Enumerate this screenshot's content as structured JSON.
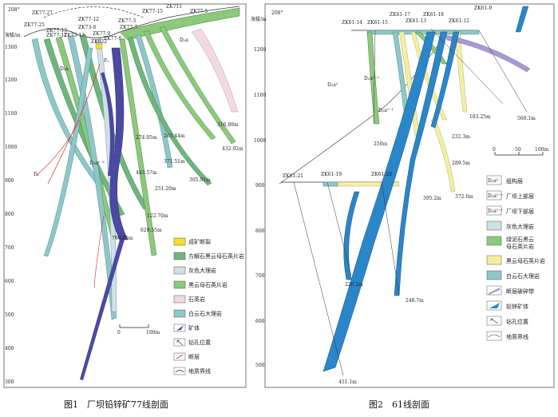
{
  "colors": {
    "ore": "#4a4aa0",
    "ore_blue": "#2a86c9",
    "green_schist": "#8cc97a",
    "quartz_schist_green": "#6fb67d",
    "grey_marble": "#cfe0e6",
    "biotite_schist_yellow": "#f4f09a",
    "dolomite_teal": "#8fc7c7",
    "quartzite_pink": "#f2d9e4",
    "fault_red": "#d0332c",
    "breccia_purple": "#a79ad0",
    "mineralized_yellow": "#f3e12c"
  },
  "fig1": {
    "caption": "图1　厂坝铅锌矿77线剖面",
    "azimuth": "208°",
    "elev_label": "海拔/m",
    "y_ticks": [
      "1300",
      "1200",
      "1100",
      "1000",
      "900",
      "800",
      "700",
      "600",
      "500",
      "400",
      "300"
    ],
    "holes": [
      "ZK77-27",
      "ZK77-25",
      "ZK77-11",
      "ZK77-13",
      "ZK73-13",
      "ZK77-12",
      "ZK73-8",
      "ZK77-9",
      "ZK77-8",
      "ZK622",
      "ZK77-3",
      "ZK77-7",
      "ZK77-15",
      "ZK711",
      "ZK77-5"
    ],
    "depths": [
      "316.89m",
      "432.92m",
      "265.44m",
      "274.05m",
      "371.51m",
      "305.91m",
      "443.57m",
      "251.20m",
      "122.70m",
      "629.55m",
      "706.85m"
    ],
    "formations": [
      "D₂a",
      "D₂a",
      "D₂a¹⁻²",
      "F₁",
      "F₂"
    ],
    "scale": [
      "0",
      "100m"
    ],
    "legend": [
      {
        "label": "成矿断裂",
        "swatch": "mineralized_yellow"
      },
      {
        "label": "方解石黑云母石英片岩",
        "swatch": "quartz_schist_green"
      },
      {
        "label": "灰色大理岩",
        "swatch": "grey_marble"
      },
      {
        "label": "黑云母石英片岩",
        "swatch": "green_schist"
      },
      {
        "label": "石英岩",
        "swatch": "quartzite_pink"
      },
      {
        "label": "白云石大理岩",
        "swatch": "dolomite_teal"
      },
      {
        "label": "矿体",
        "swatch": "ore"
      },
      {
        "label": "钻孔位置",
        "swatch": "none"
      },
      {
        "label": "断层",
        "swatch": "fault_red"
      },
      {
        "label": "地质界线",
        "swatch": "none"
      }
    ]
  },
  "fig2": {
    "caption": "图2　61线剖面",
    "azimuth": "208°",
    "elev_label": "海拔/m",
    "y_ticks": [
      "1200",
      "1100",
      "1000",
      "900",
      "800",
      "700",
      "600",
      "500"
    ],
    "holes": [
      "ZK61-14",
      "ZK61-15",
      "ZK61-17",
      "ZK61-13",
      "ZK61-18",
      "ZK61-12",
      "ZK61-9",
      "ZK61-21",
      "ZK61-19",
      "ZK61-20"
    ],
    "depths": [
      "183.25m",
      "560.1m",
      "250m",
      "232.3m",
      "289.5m",
      "395.2m",
      "372.6m",
      "220.2m",
      "248.7m",
      "451.1m"
    ],
    "formations": [
      "D₂a²",
      "D₂a¹⁻²",
      "D₂a¹⁻¹"
    ],
    "scale": [
      "0",
      "50",
      "100m"
    ],
    "legend": [
      {
        "label": "组构层",
        "sym": "D₂a²",
        "swatch": "none"
      },
      {
        "label": "厂坝上部层",
        "sym": "D₂a¹⁻²",
        "swatch": "none"
      },
      {
        "label": "厂坝下部层",
        "sym": "D₂a¹⁻¹",
        "swatch": "none"
      },
      {
        "label": "灰色大理岩",
        "swatch": "grey_marble"
      },
      {
        "label": "绿泥石黑云母石英片岩",
        "swatch": "green_schist"
      },
      {
        "label": "黑云母石英片岩",
        "swatch": "biotite_schist_yellow"
      },
      {
        "label": "白云石大理岩",
        "swatch": "dolomite_teal"
      },
      {
        "label": "断层破碎带",
        "swatch": "breccia_purple"
      },
      {
        "label": "铅锌矿体",
        "swatch": "ore_blue"
      },
      {
        "label": "钻孔位置",
        "swatch": "none"
      },
      {
        "label": "地质界线",
        "swatch": "none"
      }
    ]
  }
}
